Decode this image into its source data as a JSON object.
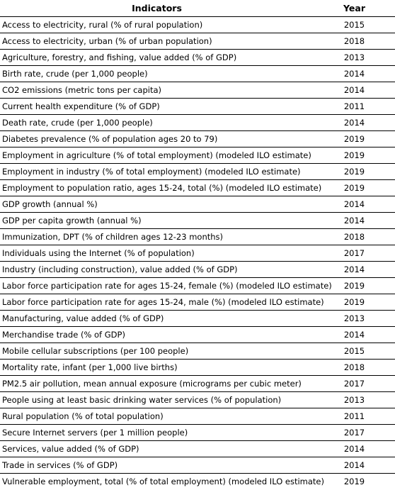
{
  "table": {
    "headers": {
      "indicator": "Indicators",
      "year": "Year"
    },
    "rows": [
      {
        "indicator": "Access to electricity, rural (% of rural population)",
        "year": "2015"
      },
      {
        "indicator": "Access to electricity, urban (% of urban population)",
        "year": "2018"
      },
      {
        "indicator": "Agriculture, forestry, and fishing, value added (% of GDP)",
        "year": "2013"
      },
      {
        "indicator": "Birth rate, crude (per 1,000 people)",
        "year": "2014"
      },
      {
        "indicator": "CO2 emissions (metric tons per capita)",
        "year": "2014"
      },
      {
        "indicator": "Current health expenditure (% of GDP)",
        "year": "2011"
      },
      {
        "indicator": "Death rate, crude (per 1,000 people)",
        "year": "2014"
      },
      {
        "indicator": "Diabetes prevalence (% of population ages 20 to 79)",
        "year": "2019"
      },
      {
        "indicator": "Employment in agriculture (% of total employment) (modeled ILO estimate)",
        "year": "2019"
      },
      {
        "indicator": "Employment in industry (% of total employment) (modeled ILO estimate)",
        "year": "2019"
      },
      {
        "indicator": "Employment to population ratio, ages 15-24, total (%) (modeled ILO estimate)",
        "year": "2019"
      },
      {
        "indicator": "GDP growth (annual %)",
        "year": "2014"
      },
      {
        "indicator": "GDP per capita growth (annual %)",
        "year": "2014"
      },
      {
        "indicator": "Immunization, DPT (% of children ages 12-23 months)",
        "year": "2018"
      },
      {
        "indicator": "Individuals using the Internet (% of population)",
        "year": "2017"
      },
      {
        "indicator": "Industry (including construction), value added (% of GDP)",
        "year": "2014"
      },
      {
        "indicator": "Labor force participation rate for ages 15-24, female (%) (modeled ILO estimate)",
        "year": "2019"
      },
      {
        "indicator": "Labor force participation rate for ages 15-24, male (%) (modeled ILO estimate)",
        "year": "2019"
      },
      {
        "indicator": "Manufacturing, value added (% of GDP)",
        "year": "2013"
      },
      {
        "indicator": "Merchandise trade (% of GDP)",
        "year": "2014"
      },
      {
        "indicator": "Mobile cellular subscriptions (per 100 people)",
        "year": "2015"
      },
      {
        "indicator": "Mortality rate, infant (per 1,000 live births)",
        "year": "2018"
      },
      {
        "indicator": "PM2.5 air pollution, mean annual exposure (micrograms per cubic meter)",
        "year": "2017"
      },
      {
        "indicator": "People using at least basic drinking water services (% of population)",
        "year": "2013"
      },
      {
        "indicator": "Rural population (% of total population)",
        "year": "2011"
      },
      {
        "indicator": "Secure Internet servers (per 1 million people)",
        "year": "2017"
      },
      {
        "indicator": "Services, value added (% of GDP)",
        "year": "2014"
      },
      {
        "indicator": "Trade in services (% of GDP)",
        "year": "2014"
      },
      {
        "indicator": "Vulnerable employment, total (% of total employment) (modeled ILO estimate)",
        "year": "2019"
      }
    ]
  }
}
